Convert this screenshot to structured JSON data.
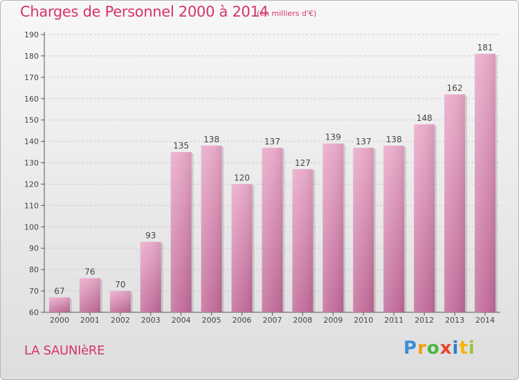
{
  "header": {
    "title": "Charges de Personnel 2000 à 2014",
    "subtitle": "(en milliers d'€)"
  },
  "commune_name": "LA SAUNIèRE",
  "logo_text": "Proxiti",
  "colors": {
    "title": "#d6336c",
    "bar_top": "#e8a8c8",
    "bar_bottom": "#c06a98"
  },
  "chart_data": {
    "type": "bar",
    "title": "Charges de Personnel 2000 à 2014",
    "subtitle": "(en milliers d'€)",
    "categories": [
      "2000",
      "2001",
      "2002",
      "2003",
      "2004",
      "2005",
      "2006",
      "2007",
      "2008",
      "2009",
      "2010",
      "2011",
      "2012",
      "2013",
      "2014"
    ],
    "values": [
      67,
      76,
      70,
      93,
      135,
      138,
      120,
      137,
      127,
      139,
      137,
      138,
      148,
      162,
      181
    ],
    "ylim": [
      60,
      190
    ],
    "yticks": [
      60,
      70,
      80,
      90,
      100,
      110,
      120,
      130,
      140,
      150,
      160,
      170,
      180,
      190
    ],
    "grid": true,
    "data_labels": true
  }
}
